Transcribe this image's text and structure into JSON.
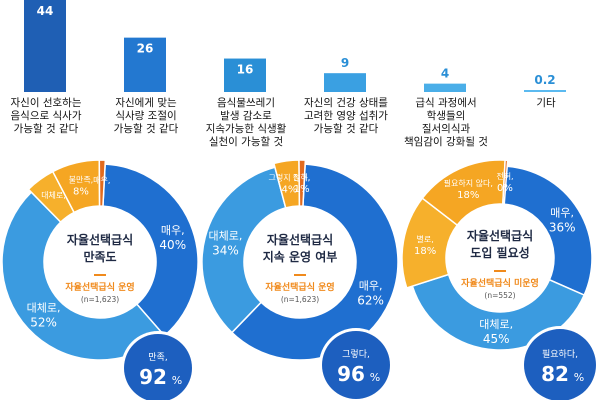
{
  "chart_data": [
    {
      "type": "bar",
      "categories": [
        [
          "자신이 선호하는",
          "음식으로 식사가",
          "가능할 것 같다"
        ],
        [
          "자신에게 맞는",
          "식사량 조절이",
          "가능할 것 같다"
        ],
        [
          "음식물쓰레기",
          "발생 감소로",
          "지속가능한 식생활",
          "실천이 가능할 것"
        ],
        [
          "자신의 건강 상태를",
          "고려한 영양 섭취가",
          "가능할 것 같다"
        ],
        [
          "급식 과정에서",
          "학생들의",
          "질서의식과",
          "책임감이 강화될 것"
        ],
        [
          "기타"
        ]
      ],
      "values": [
        44,
        26,
        16,
        9,
        4,
        0.2
      ],
      "value_labels": [
        "44",
        "26",
        "16",
        "9",
        "4",
        "0.2"
      ],
      "ylim": [
        0,
        44
      ],
      "colors": [
        "#1f5fb4",
        "#2378d0",
        "#2a8fd6",
        "#3aa0e2",
        "#4aaee8",
        "#5bbaf0"
      ]
    },
    {
      "type": "pie",
      "title": [
        "자율선택급식",
        "만족도"
      ],
      "subtitle": "자율선택급식 운영",
      "n_label": "(n=1,623)",
      "slices": [
        {
          "name": "매우,",
          "value": 40,
          "label": "40%",
          "color": "#1f6fd0"
        },
        {
          "name": "대체로,",
          "value": 52,
          "label": "52%",
          "color": "#3b9be0"
        },
        {
          "name": "대체로,",
          "value": 5,
          "label": "",
          "color": "#f6b02c"
        },
        {
          "name": "불만족,",
          "value": 8,
          "label": "8%",
          "color": "#f5a623"
        },
        {
          "name": "매우,",
          "value": 1,
          "label": "",
          "color": "#e26b1e"
        }
      ],
      "total": {
        "name": "만족,",
        "value": "92",
        "unit": "%"
      }
    },
    {
      "type": "pie",
      "title": [
        "자율선택급식",
        "지속 운영 여부"
      ],
      "subtitle": "자율선택급식 운영",
      "n_label": "(n=1,623)",
      "slices": [
        {
          "name": "매우,",
          "value": 62,
          "label": "62%",
          "color": "#1f6fd0"
        },
        {
          "name": "대체로,",
          "value": 34,
          "label": "34%",
          "color": "#3b9be0"
        },
        {
          "name": "그렇지 않다,",
          "value": 4,
          "label": "4%",
          "color": "#f5a623"
        },
        {
          "name": "전혀,",
          "value": 1,
          "label": "1%",
          "color": "#e26b1e"
        }
      ],
      "total": {
        "name": "그렇다,",
        "value": "96",
        "unit": "%"
      }
    },
    {
      "type": "pie",
      "title": [
        "자율선택급식",
        "도입 필요성"
      ],
      "subtitle": "자율선택급식 미운영",
      "n_label": "(n=552)",
      "slices": [
        {
          "name": "매우,",
          "value": 36,
          "label": "36%",
          "color": "#1f6fd0"
        },
        {
          "name": "대체로,",
          "value": 45,
          "label": "45%",
          "color": "#3b9be0"
        },
        {
          "name": "별로,",
          "value": 18,
          "label": "18%",
          "color": "#f6b02c"
        },
        {
          "name": "필요하지 않다,",
          "value": 18,
          "label": "18%",
          "color": "#f5a623"
        },
        {
          "name": "전혀,",
          "value": 0,
          "label": "0%",
          "color": "#e26b1e"
        }
      ],
      "total": {
        "name": "필요하다,",
        "value": "82",
        "unit": "%"
      }
    }
  ]
}
